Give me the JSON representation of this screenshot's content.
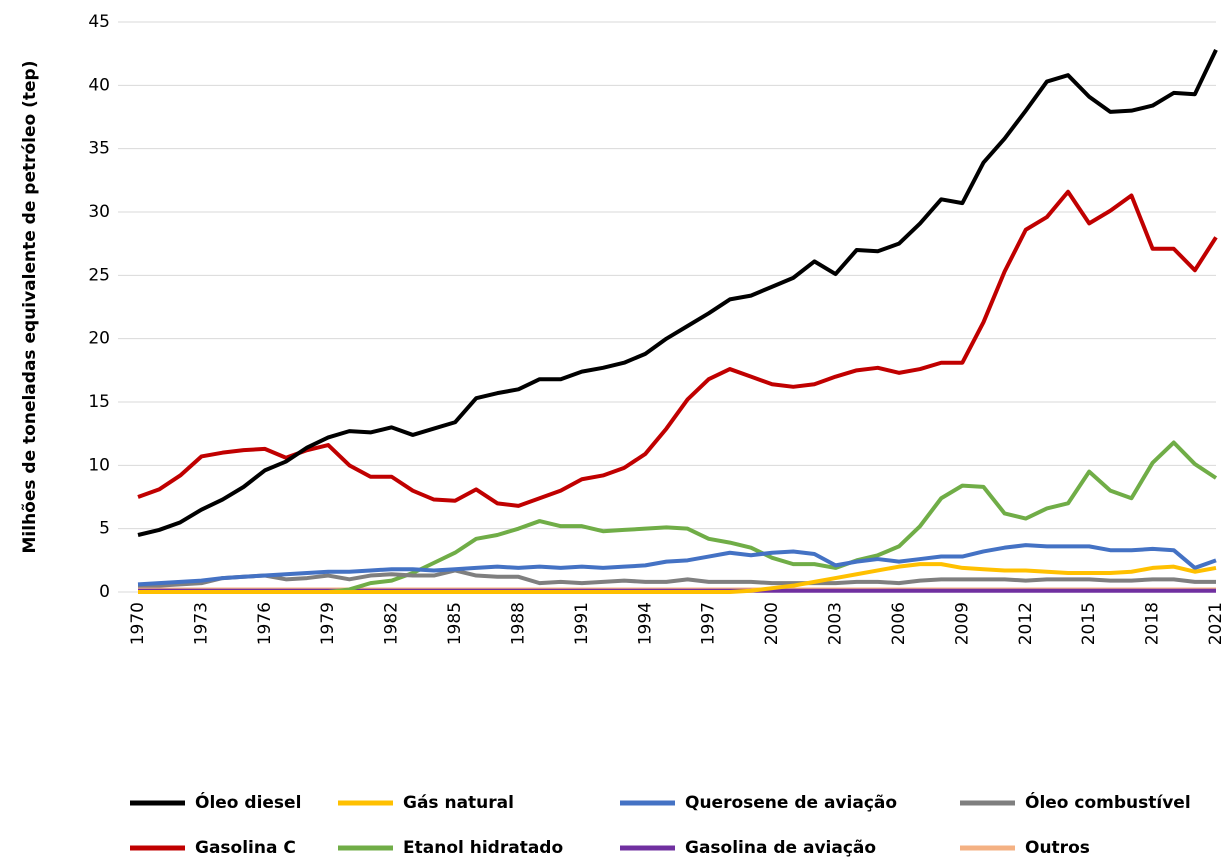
{
  "chart_data": {
    "type": "line",
    "y_label": "Milhões de toneladas equivalente de petróleo (tep)",
    "x": [
      1970,
      1971,
      1972,
      1973,
      1974,
      1975,
      1976,
      1977,
      1978,
      1979,
      1980,
      1981,
      1982,
      1983,
      1984,
      1985,
      1986,
      1987,
      1988,
      1989,
      1990,
      1991,
      1992,
      1993,
      1994,
      1995,
      1996,
      1997,
      1998,
      1999,
      2000,
      2001,
      2002,
      2003,
      2004,
      2005,
      2006,
      2007,
      2008,
      2009,
      2010,
      2011,
      2012,
      2013,
      2014,
      2015,
      2016,
      2017,
      2018,
      2019,
      2020,
      2021
    ],
    "xlim": [
      1970,
      2021
    ],
    "xticks": [
      1970,
      1973,
      1976,
      1979,
      1982,
      1985,
      1988,
      1991,
      1994,
      1997,
      2000,
      2003,
      2006,
      2009,
      2012,
      2015,
      2018,
      2021
    ],
    "ylim": [
      0,
      45
    ],
    "yticks": [
      0,
      5,
      10,
      15,
      20,
      25,
      30,
      35,
      40,
      45
    ],
    "grid": true,
    "series": [
      {
        "name": "Óleo diesel",
        "color": "#000000",
        "values": [
          4.5,
          4.9,
          5.5,
          6.5,
          7.3,
          8.3,
          9.6,
          10.3,
          11.4,
          12.2,
          12.7,
          12.6,
          13.0,
          12.4,
          12.9,
          13.4,
          15.3,
          15.7,
          16.0,
          16.8,
          16.8,
          17.4,
          17.7,
          18.1,
          18.8,
          20.0,
          21.0,
          22.0,
          23.1,
          23.4,
          24.1,
          24.8,
          26.1,
          25.1,
          27.0,
          26.9,
          27.5,
          29.1,
          31.0,
          30.7,
          33.9,
          35.8,
          38.0,
          40.3,
          40.8,
          39.1,
          37.9,
          38.0,
          38.4,
          39.4,
          39.3,
          42.8
        ]
      },
      {
        "name": "Gás natural",
        "color": "#ffc000",
        "values": [
          0,
          0,
          0,
          0,
          0,
          0,
          0,
          0,
          0,
          0,
          0,
          0,
          0,
          0,
          0,
          0,
          0,
          0,
          0,
          0,
          0,
          0,
          0,
          0,
          0,
          0,
          0,
          0,
          0,
          0.1,
          0.3,
          0.5,
          0.8,
          1.1,
          1.4,
          1.7,
          2.0,
          2.2,
          2.2,
          1.9,
          1.8,
          1.7,
          1.7,
          1.6,
          1.5,
          1.5,
          1.5,
          1.6,
          1.9,
          2.0,
          1.6,
          1.9
        ]
      },
      {
        "name": "Querosene de aviação",
        "color": "#4472c4",
        "values": [
          0.6,
          0.7,
          0.8,
          0.9,
          1.1,
          1.2,
          1.3,
          1.4,
          1.5,
          1.6,
          1.6,
          1.7,
          1.8,
          1.8,
          1.7,
          1.8,
          1.9,
          2.0,
          1.9,
          2.0,
          1.9,
          2.0,
          1.9,
          2.0,
          2.1,
          2.4,
          2.5,
          2.8,
          3.1,
          2.9,
          3.1,
          3.2,
          3.0,
          2.1,
          2.4,
          2.6,
          2.4,
          2.6,
          2.8,
          2.8,
          3.2,
          3.5,
          3.7,
          3.6,
          3.6,
          3.6,
          3.3,
          3.3,
          3.4,
          3.3,
          1.9,
          2.5
        ]
      },
      {
        "name": "Óleo combustível",
        "color": "#7f7f7f",
        "values": [
          0.5,
          0.5,
          0.6,
          0.7,
          1.1,
          1.2,
          1.3,
          1.0,
          1.1,
          1.3,
          1.0,
          1.3,
          1.4,
          1.3,
          1.3,
          1.7,
          1.3,
          1.2,
          1.2,
          0.7,
          0.8,
          0.7,
          0.8,
          0.9,
          0.8,
          0.8,
          1.0,
          0.8,
          0.8,
          0.8,
          0.7,
          0.7,
          0.7,
          0.7,
          0.8,
          0.8,
          0.7,
          0.9,
          1.0,
          1.0,
          1.0,
          1.0,
          0.9,
          1.0,
          1.0,
          1.0,
          0.9,
          0.9,
          1.0,
          1.0,
          0.8,
          0.8
        ]
      },
      {
        "name": "Gasolina C",
        "color": "#c00000",
        "values": [
          7.5,
          8.1,
          9.2,
          10.7,
          11.0,
          11.2,
          11.3,
          10.6,
          11.2,
          11.6,
          10.0,
          9.1,
          9.1,
          8.0,
          7.3,
          7.2,
          8.1,
          7.0,
          6.8,
          7.4,
          8.0,
          8.9,
          9.2,
          9.8,
          10.9,
          12.9,
          15.2,
          16.8,
          17.6,
          17.0,
          16.4,
          16.2,
          16.4,
          17.0,
          17.5,
          17.7,
          17.3,
          17.6,
          18.1,
          18.1,
          21.3,
          25.3,
          28.6,
          29.6,
          31.6,
          29.1,
          30.1,
          31.3,
          27.1,
          27.1,
          25.4,
          28.0
        ]
      },
      {
        "name": "Etanol hidratado",
        "color": "#70ad47",
        "values": [
          0,
          0,
          0,
          0,
          0,
          0,
          0,
          0,
          0,
          0,
          0.2,
          0.7,
          0.9,
          1.5,
          2.3,
          3.1,
          4.2,
          4.5,
          5.0,
          5.6,
          5.2,
          5.2,
          4.8,
          4.9,
          5.0,
          5.1,
          5.0,
          4.2,
          3.9,
          3.5,
          2.7,
          2.2,
          2.2,
          1.9,
          2.5,
          2.9,
          3.6,
          5.2,
          7.4,
          8.4,
          8.3,
          6.2,
          5.8,
          6.6,
          7.0,
          9.5,
          8.0,
          7.4,
          10.2,
          11.8,
          10.1,
          9.0
        ]
      },
      {
        "name": "Gasolina de aviação",
        "color": "#7030a0",
        "values": [
          0.1,
          0.1,
          0.1,
          0.1,
          0.1,
          0.1,
          0.1,
          0.1,
          0.1,
          0.1,
          0.1,
          0.1,
          0.1,
          0.1,
          0.1,
          0.1,
          0.1,
          0.1,
          0.1,
          0.1,
          0.1,
          0.1,
          0.1,
          0.1,
          0.1,
          0.1,
          0.1,
          0.1,
          0.1,
          0.1,
          0.1,
          0.1,
          0.1,
          0.1,
          0.1,
          0.1,
          0.1,
          0.1,
          0.1,
          0.1,
          0.1,
          0.1,
          0.1,
          0.1,
          0.1,
          0.1,
          0.1,
          0.1,
          0.1,
          0.1,
          0.1,
          0.1
        ]
      },
      {
        "name": "Outros",
        "color": "#f4b183",
        "values": [
          0.2,
          0.2,
          0.2,
          0.2,
          0.2,
          0.2,
          0.2,
          0.2,
          0.2,
          0.2,
          0.2,
          0.2,
          0.2,
          0.2,
          0.2,
          0.2,
          0.2,
          0.2,
          0.2,
          0.2,
          0.2,
          0.2,
          0.2,
          0.2,
          0.2,
          0.2,
          0.2,
          0.2,
          0.2,
          0.2,
          0.2,
          0.2,
          0.2,
          0.2,
          0.2,
          0.2,
          0.2,
          0.2,
          0.2,
          0.2,
          0.2,
          0.2,
          0.2,
          0.2,
          0.2,
          0.2,
          0.2,
          0.2,
          0.2,
          0.2,
          0.2,
          0.2
        ]
      }
    ]
  }
}
